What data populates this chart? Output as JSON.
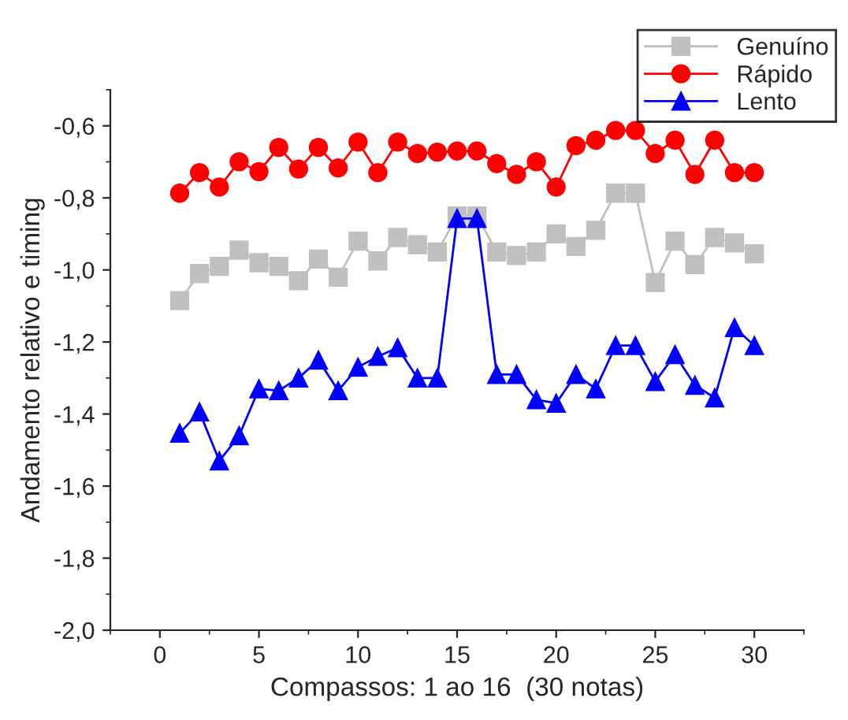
{
  "chart_data": {
    "type": "line",
    "xlabel": "Compassos: 1 ao 16  (30 notas)",
    "ylabel": "Andamento relativo e timing",
    "x": [
      1,
      2,
      3,
      4,
      5,
      6,
      7,
      8,
      9,
      10,
      11,
      12,
      13,
      14,
      15,
      16,
      17,
      18,
      19,
      20,
      21,
      22,
      23,
      24,
      25,
      26,
      27,
      28,
      29,
      30
    ],
    "series": [
      {
        "name": "Genuíno",
        "color": "#c0c0c0",
        "marker": "square",
        "values": [
          -1.085,
          -1.01,
          -0.99,
          -0.945,
          -0.98,
          -0.99,
          -1.03,
          -0.97,
          -1.02,
          -0.92,
          -0.975,
          -0.91,
          -0.93,
          -0.95,
          -0.85,
          -0.85,
          -0.95,
          -0.96,
          -0.95,
          -0.9,
          -0.935,
          -0.89,
          -0.787,
          -0.787,
          -1.035,
          -0.92,
          -0.985,
          -0.91,
          -0.925,
          -0.955
        ]
      },
      {
        "name": "Rápido",
        "color": "#ff0000",
        "marker": "circle",
        "values": [
          -0.787,
          -0.73,
          -0.77,
          -0.7,
          -0.727,
          -0.66,
          -0.72,
          -0.66,
          -0.717,
          -0.645,
          -0.73,
          -0.645,
          -0.677,
          -0.673,
          -0.67,
          -0.67,
          -0.705,
          -0.735,
          -0.7,
          -0.77,
          -0.655,
          -0.64,
          -0.613,
          -0.613,
          -0.677,
          -0.64,
          -0.735,
          -0.64,
          -0.73,
          -0.73
        ]
      },
      {
        "name": "Lento",
        "color": "#0000ff",
        "marker": "triangle",
        "values": [
          -1.453,
          -1.394,
          -1.53,
          -1.46,
          -1.33,
          -1.335,
          -1.3,
          -1.25,
          -1.335,
          -1.27,
          -1.24,
          -1.216,
          -1.3,
          -1.3,
          -0.857,
          -0.857,
          -1.29,
          -1.29,
          -1.36,
          -1.37,
          -1.29,
          -1.33,
          -1.21,
          -1.21,
          -1.31,
          -1.235,
          -1.32,
          -1.355,
          -1.16,
          -1.21
        ]
      }
    ],
    "xlim": [
      -2.5,
      32.5
    ],
    "xticks": [
      0,
      5,
      10,
      15,
      20,
      25,
      30
    ],
    "ylim": [
      -2.0,
      -0.5
    ],
    "yticks": [
      {
        "value": -2.0,
        "label": "-2,0"
      },
      {
        "value": -1.8,
        "label": "-1,8"
      },
      {
        "value": -1.6,
        "label": "-1,6"
      },
      {
        "value": -1.4,
        "label": "-1,4"
      },
      {
        "value": -1.2,
        "label": "-1,2"
      },
      {
        "value": -1.0,
        "label": "-1,0"
      },
      {
        "value": -0.8,
        "label": "-0,8"
      },
      {
        "value": -0.6,
        "label": "-0,6"
      }
    ],
    "grid": false,
    "legend": "top right",
    "line_style": "solid"
  }
}
